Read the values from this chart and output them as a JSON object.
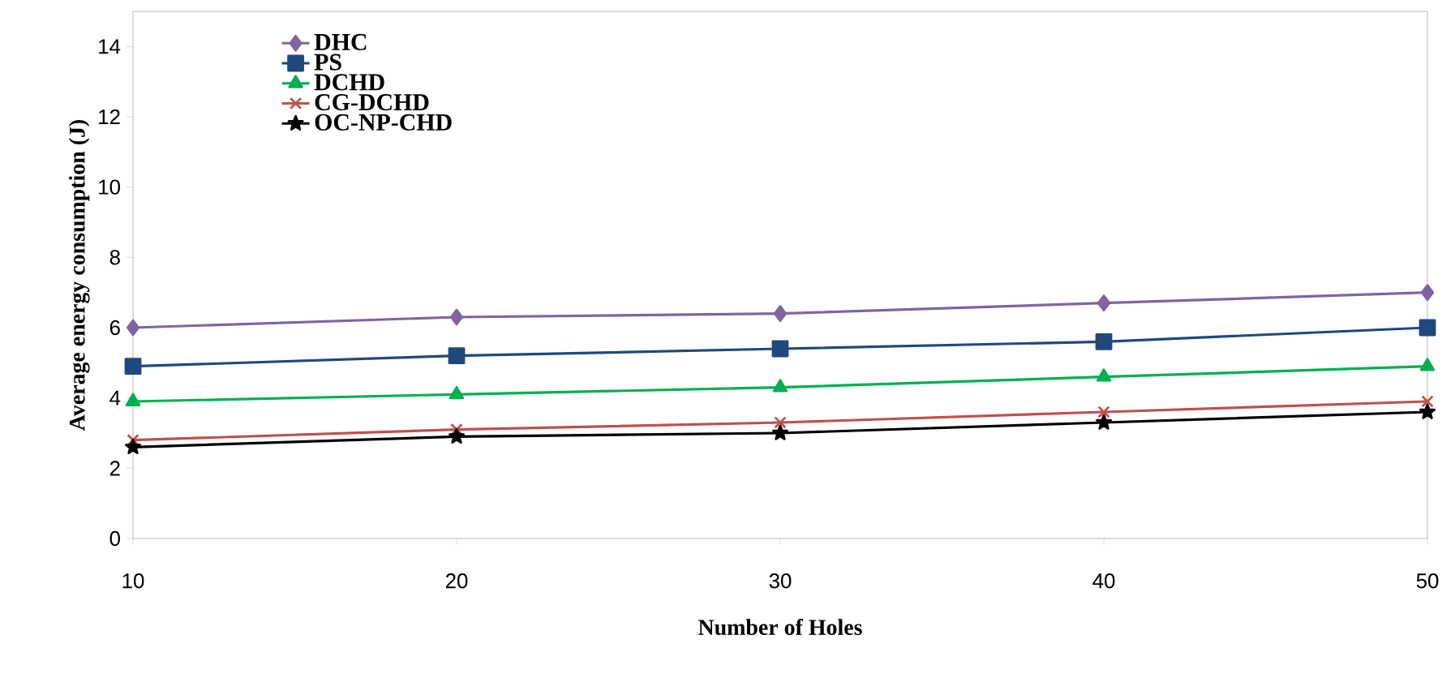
{
  "chart_data": {
    "type": "line",
    "xlabel": "Number of Holes",
    "ylabel": "Average energy consumption (J)",
    "x": [
      10,
      20,
      30,
      40,
      50
    ],
    "xlim": [
      10,
      50
    ],
    "xticks": [
      10,
      20,
      30,
      40,
      50
    ],
    "ylim": [
      0,
      15
    ],
    "yticks": [
      0,
      2,
      4,
      6,
      8,
      10,
      12,
      14
    ],
    "grid": false,
    "legend": "top left",
    "line_style": "solid",
    "series": [
      {
        "name": "DHC",
        "color": "#8064a2",
        "marker": "diamond",
        "values": [
          6.0,
          6.3,
          6.4,
          6.7,
          7.0
        ]
      },
      {
        "name": "PS",
        "color": "#1f497d",
        "marker": "square",
        "values": [
          4.9,
          5.2,
          5.4,
          5.6,
          6.0
        ]
      },
      {
        "name": "DCHD",
        "color": "#00b050",
        "marker": "triangle",
        "values": [
          3.9,
          4.1,
          4.3,
          4.6,
          4.9
        ]
      },
      {
        "name": "CG-DCHD",
        "color": "#c0504d",
        "marker": "cross",
        "values": [
          2.8,
          3.1,
          3.3,
          3.6,
          3.9
        ]
      },
      {
        "name": "OC-NP-CHD",
        "color": "#000000",
        "marker": "star",
        "values": [
          2.6,
          2.9,
          3.0,
          3.3,
          3.6
        ]
      }
    ]
  }
}
